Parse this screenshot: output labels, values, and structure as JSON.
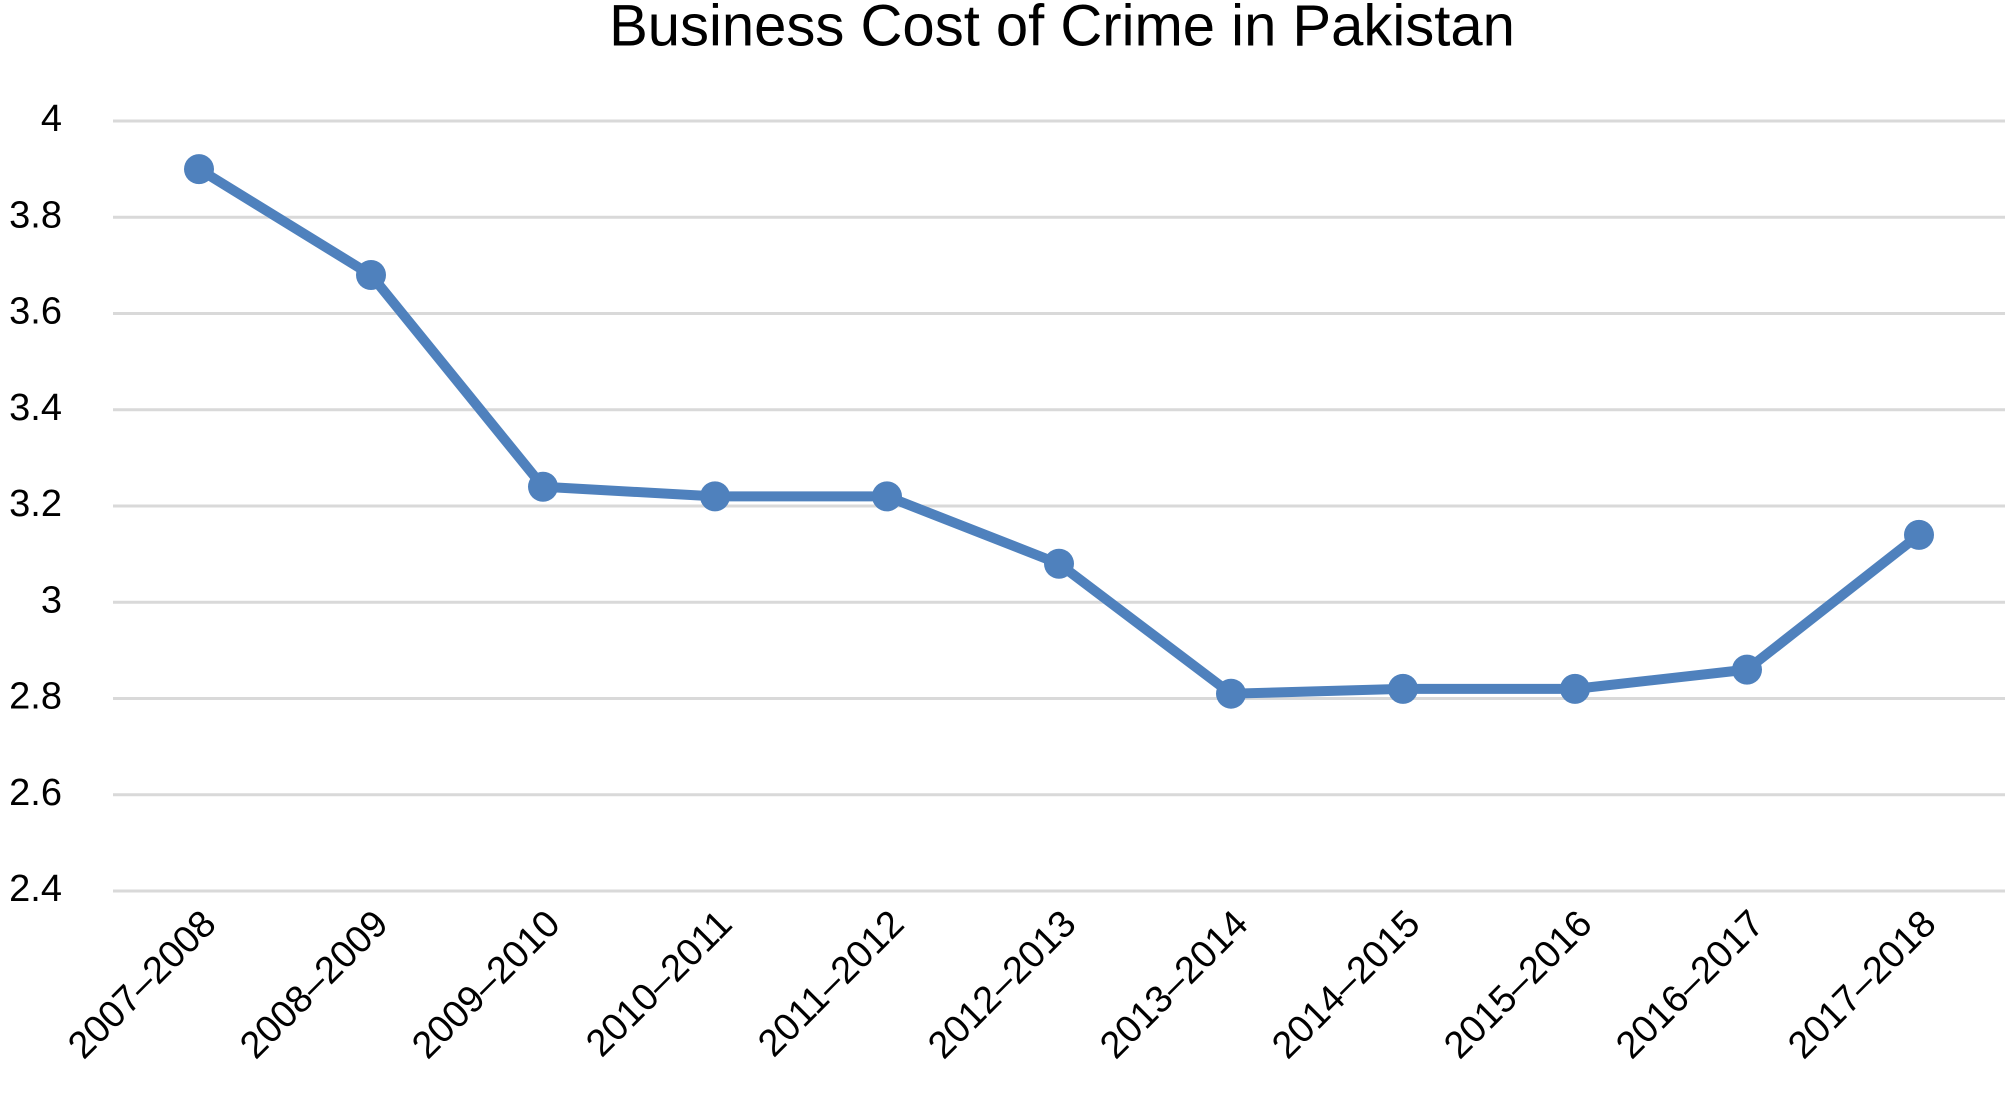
{
  "chart_data": {
    "type": "line",
    "title": "Business Cost of Crime in Pakistan",
    "categories": [
      "2007–2008",
      "2008–2009",
      "2009–2010",
      "2010–2011",
      "2011–2012",
      "2012–2013",
      "2013–2014",
      "2014–2015",
      "2015–2016",
      "2016–2017",
      "2017–2018"
    ],
    "series": [
      {
        "name": "Business Cost of Crime",
        "color": "#4f81bd",
        "values": [
          3.9,
          3.68,
          3.24,
          3.22,
          3.22,
          3.08,
          2.81,
          2.82,
          2.82,
          2.86,
          3.14
        ]
      }
    ],
    "ylim": [
      2.4,
      4
    ],
    "yticks": [
      2.4,
      2.6,
      2.8,
      3,
      3.2,
      3.4,
      3.6,
      3.8,
      4
    ],
    "grid": true
  }
}
